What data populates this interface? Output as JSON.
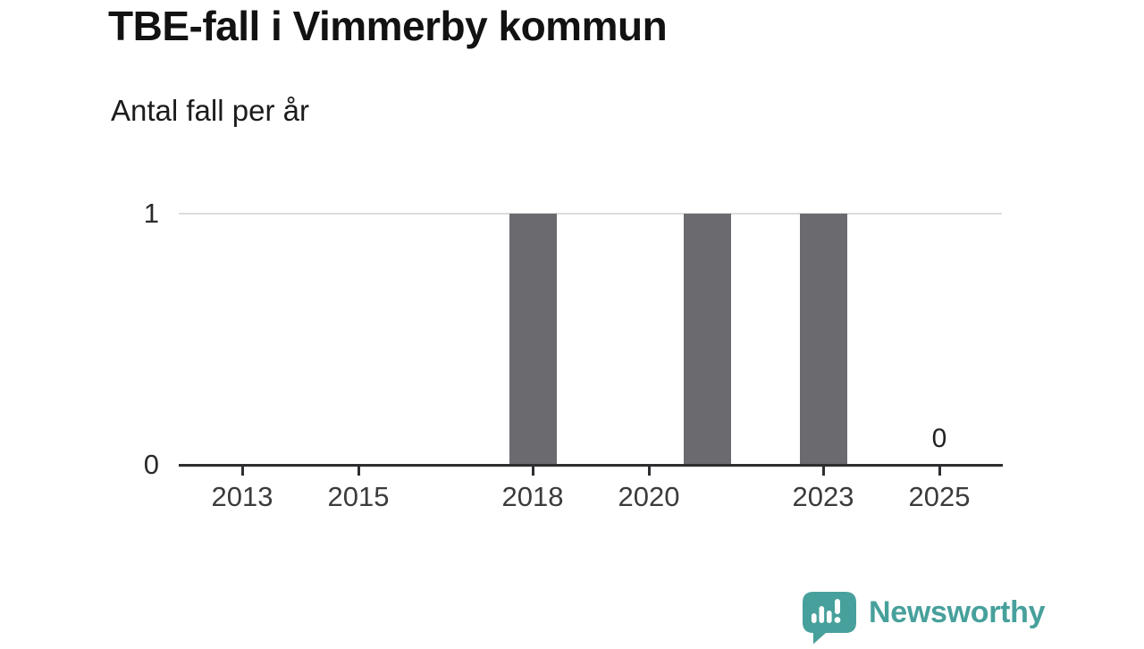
{
  "title": "TBE-fall i Vimmerby kommun",
  "subtitle": "Antal fall per år",
  "branding": {
    "name": "Newsworthy",
    "icon": "newsworthy-speech-bubble-chart-icon",
    "color": "#47a09b"
  },
  "colors": {
    "bar": "#6b6a6f",
    "gridline": "#dcdcdc",
    "axis": "#2e2d30",
    "tick_label": "#3b3b3b",
    "title": "#121212",
    "subtitle": "#1c1c1c",
    "value_label": "#222222"
  },
  "chart_data": {
    "type": "bar",
    "title": "TBE-fall i Vimmerby kommun",
    "subtitle": "Antal fall per år",
    "x": [
      2012,
      2013,
      2014,
      2015,
      2016,
      2017,
      2018,
      2019,
      2020,
      2021,
      2022,
      2023,
      2024,
      2025
    ],
    "values": [
      0,
      0,
      0,
      0,
      0,
      0,
      1,
      0,
      0,
      1,
      0,
      1,
      0,
      0
    ],
    "xticks": [
      "2013",
      "2015",
      "2018",
      "2020",
      "2023",
      "2025"
    ],
    "yticks": [
      "0",
      "1"
    ],
    "ylim": [
      0,
      1
    ],
    "xlabel": "",
    "ylabel": "",
    "grid": "horizontal-line-at-y1-only",
    "legend": "none",
    "annotations": [
      {
        "x": 2025,
        "label": "0"
      }
    ]
  }
}
